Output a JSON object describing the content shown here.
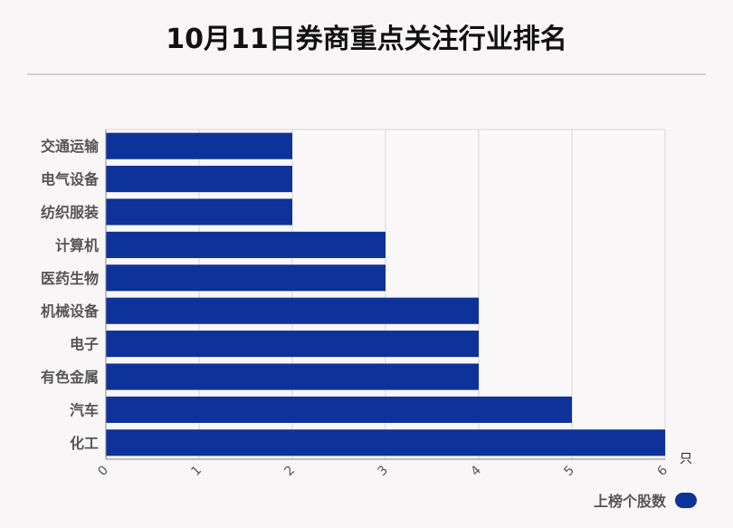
{
  "title": "10月11日券商重点关注行业排名",
  "unit": "只",
  "legend": {
    "label": "上榜个股数",
    "color": "#0d3299"
  },
  "chart_data": {
    "type": "bar",
    "orientation": "horizontal",
    "title": "10月11日券商重点关注行业排名",
    "categories": [
      "交通运输",
      "电气设备",
      "纺织服装",
      "计算机",
      "医药生物",
      "机械设备",
      "电子",
      "有色金属",
      "汽车",
      "化工"
    ],
    "series": [
      {
        "name": "上榜个股数",
        "values": [
          2,
          2,
          2,
          3,
          3,
          4,
          4,
          4,
          5,
          6
        ],
        "color": "#0d3299"
      }
    ],
    "xlim": [
      0,
      6
    ],
    "x_ticks": [
      "0",
      "1",
      "2",
      "3",
      "4",
      "5",
      "6"
    ],
    "xlabel": "只",
    "grid": true,
    "legend_position": "bottom-right"
  }
}
